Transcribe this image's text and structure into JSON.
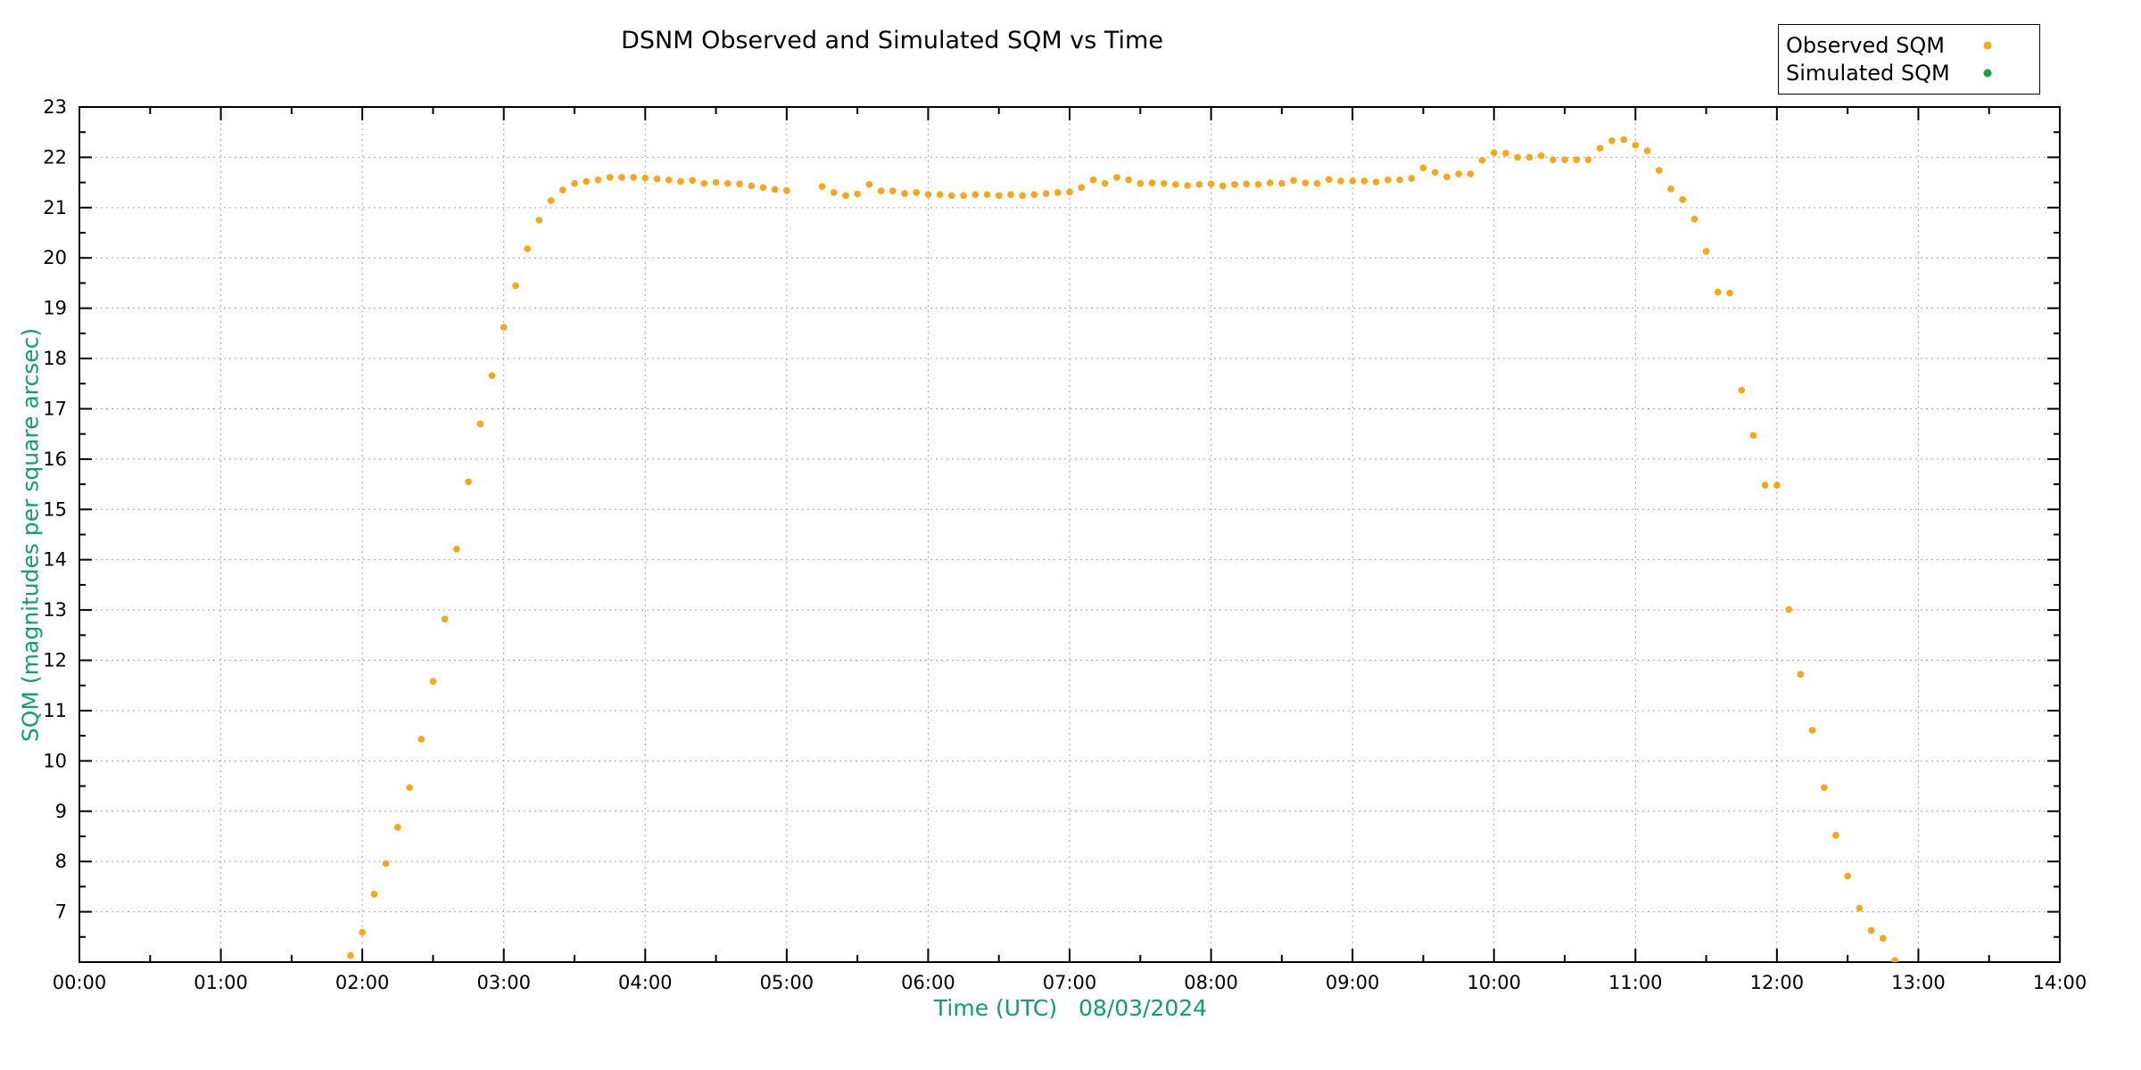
{
  "title": "DSNM Observed and Simulated SQM vs Time",
  "axes": {
    "xlabel": "Time (UTC)   08/03/2024",
    "ylabel": "SQM (magnitudes per square arcsec)",
    "label_color": "#0aa070"
  },
  "legend": {
    "entries": [
      {
        "label": "Observed SQM",
        "color": "#ffa513"
      },
      {
        "label": "Simulated SQM",
        "color": "#17a339"
      }
    ]
  },
  "chart_data": {
    "type": "scatter",
    "title": "DSNM Observed and Simulated SQM vs Time",
    "xlabel": "Time (UTC)   08/03/2024",
    "ylabel": "SQM (magnitudes per square arcsec)",
    "xlim_hours": [
      0,
      14
    ],
    "ylim": [
      6,
      23
    ],
    "x_ticks": [
      "00:00",
      "01:00",
      "02:00",
      "03:00",
      "04:00",
      "05:00",
      "06:00",
      "07:00",
      "08:00",
      "09:00",
      "10:00",
      "11:00",
      "12:00",
      "13:00",
      "14:00"
    ],
    "y_ticks": [
      7,
      8,
      9,
      10,
      11,
      12,
      13,
      14,
      15,
      16,
      17,
      18,
      19,
      20,
      21,
      22,
      23
    ],
    "grid": true,
    "grid_color": "#a8a8a8",
    "legend_position": "top-right",
    "series": [
      {
        "name": "Observed SQM",
        "color": "#ffa513",
        "points": [
          [
            "01:55",
            6.13
          ],
          [
            "02:00",
            6.59
          ],
          [
            "02:05",
            7.35
          ],
          [
            "02:10",
            7.96
          ],
          [
            "02:15",
            8.68
          ],
          [
            "02:20",
            9.47
          ],
          [
            "02:25",
            10.43
          ],
          [
            "02:30",
            11.58
          ],
          [
            "02:35",
            12.82
          ],
          [
            "02:40",
            14.21
          ],
          [
            "02:45",
            15.55
          ],
          [
            "02:50",
            16.7
          ],
          [
            "02:55",
            17.66
          ],
          [
            "03:00",
            18.62
          ],
          [
            "03:05",
            19.45
          ],
          [
            "03:10",
            20.18
          ],
          [
            "03:15",
            20.75
          ],
          [
            "03:20",
            21.14
          ],
          [
            "03:25",
            21.35
          ],
          [
            "03:30",
            21.48
          ],
          [
            "03:35",
            21.52
          ],
          [
            "03:40",
            21.55
          ],
          [
            "03:45",
            21.6
          ],
          [
            "03:50",
            21.6
          ],
          [
            "03:55",
            21.6
          ],
          [
            "04:00",
            21.59
          ],
          [
            "04:05",
            21.57
          ],
          [
            "04:10",
            21.55
          ],
          [
            "04:15",
            21.52
          ],
          [
            "04:20",
            21.54
          ],
          [
            "04:25",
            21.48
          ],
          [
            "04:30",
            21.5
          ],
          [
            "04:35",
            21.48
          ],
          [
            "04:40",
            21.47
          ],
          [
            "04:45",
            21.43
          ],
          [
            "04:50",
            21.4
          ],
          [
            "04:55",
            21.36
          ],
          [
            "05:00",
            21.34
          ],
          [
            "05:15",
            21.42
          ],
          [
            "05:20",
            21.3
          ],
          [
            "05:25",
            21.24
          ],
          [
            "05:30",
            21.27
          ],
          [
            "05:35",
            21.46
          ],
          [
            "05:40",
            21.33
          ],
          [
            "05:45",
            21.33
          ],
          [
            "05:50",
            21.28
          ],
          [
            "05:55",
            21.3
          ],
          [
            "06:00",
            21.26
          ],
          [
            "06:05",
            21.26
          ],
          [
            "06:10",
            21.24
          ],
          [
            "06:15",
            21.24
          ],
          [
            "06:20",
            21.26
          ],
          [
            "06:25",
            21.26
          ],
          [
            "06:30",
            21.24
          ],
          [
            "06:35",
            21.26
          ],
          [
            "06:40",
            21.24
          ],
          [
            "06:45",
            21.26
          ],
          [
            "06:50",
            21.28
          ],
          [
            "06:55",
            21.3
          ],
          [
            "07:00",
            21.31
          ],
          [
            "07:05",
            21.4
          ],
          [
            "07:10",
            21.55
          ],
          [
            "07:15",
            21.48
          ],
          [
            "07:20",
            21.6
          ],
          [
            "07:25",
            21.55
          ],
          [
            "07:30",
            21.48
          ],
          [
            "07:35",
            21.49
          ],
          [
            "07:40",
            21.48
          ],
          [
            "07:45",
            21.46
          ],
          [
            "07:50",
            21.44
          ],
          [
            "07:55",
            21.46
          ],
          [
            "08:00",
            21.47
          ],
          [
            "08:05",
            21.43
          ],
          [
            "08:10",
            21.46
          ],
          [
            "08:15",
            21.47
          ],
          [
            "08:20",
            21.46
          ],
          [
            "08:25",
            21.49
          ],
          [
            "08:30",
            21.48
          ],
          [
            "08:35",
            21.54
          ],
          [
            "08:40",
            21.49
          ],
          [
            "08:45",
            21.48
          ],
          [
            "08:50",
            21.56
          ],
          [
            "08:55",
            21.53
          ],
          [
            "09:00",
            21.53
          ],
          [
            "09:05",
            21.53
          ],
          [
            "09:10",
            21.51
          ],
          [
            "09:15",
            21.55
          ],
          [
            "09:20",
            21.55
          ],
          [
            "09:25",
            21.58
          ],
          [
            "09:30",
            21.79
          ],
          [
            "09:35",
            21.7
          ],
          [
            "09:40",
            21.61
          ],
          [
            "09:45",
            21.67
          ],
          [
            "09:50",
            21.67
          ],
          [
            "09:55",
            21.94
          ],
          [
            "10:00",
            22.09
          ],
          [
            "10:05",
            22.08
          ],
          [
            "10:10",
            22.0
          ],
          [
            "10:15",
            22.0
          ],
          [
            "10:20",
            22.03
          ],
          [
            "10:25",
            21.95
          ],
          [
            "10:30",
            21.95
          ],
          [
            "10:35",
            21.95
          ],
          [
            "10:40",
            21.95
          ],
          [
            "10:45",
            22.18
          ],
          [
            "10:50",
            22.33
          ],
          [
            "10:55",
            22.35
          ],
          [
            "11:00",
            22.24
          ],
          [
            "11:05",
            22.13
          ],
          [
            "11:10",
            21.74
          ],
          [
            "11:15",
            21.37
          ],
          [
            "11:20",
            21.16
          ],
          [
            "11:25",
            20.77
          ],
          [
            "11:30",
            20.13
          ],
          [
            "11:35",
            19.32
          ],
          [
            "11:40",
            19.3
          ],
          [
            "11:45",
            17.37
          ],
          [
            "11:50",
            16.47
          ],
          [
            "11:55",
            15.48
          ],
          [
            "12:00",
            15.48
          ],
          [
            "12:05",
            13.01
          ],
          [
            "12:10",
            11.72
          ],
          [
            "12:15",
            10.61
          ],
          [
            "12:20",
            9.47
          ],
          [
            "12:25",
            8.52
          ],
          [
            "12:30",
            7.71
          ],
          [
            "12:35",
            7.07
          ],
          [
            "12:40",
            6.63
          ],
          [
            "12:45",
            6.47
          ],
          [
            "12:50",
            6.03
          ]
        ]
      },
      {
        "name": "Simulated SQM",
        "color": "#17a339",
        "points": []
      }
    ]
  }
}
